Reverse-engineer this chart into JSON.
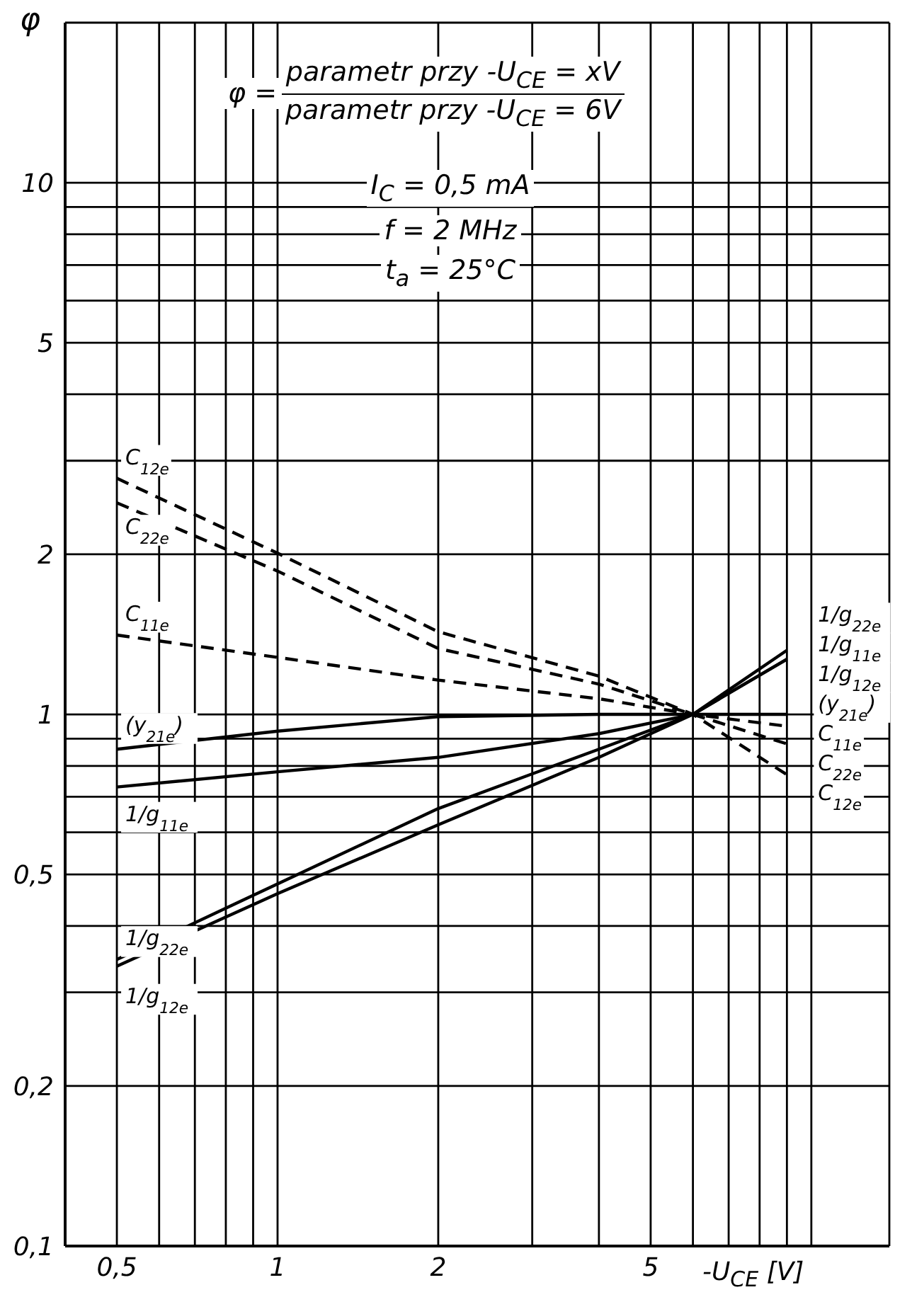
{
  "chart_data": {
    "type": "line",
    "xlabel": "-U$_{CE}$ [V]",
    "ylabel": "φ",
    "annotations": [
      "φ =",
      "parametr przy -U$_{CE}$ = xV",
      "parametr przy -U$_{CE}$ = 6V",
      "I$_{C}$ = 0,5 mA",
      "f = 2 MHz",
      "t$_{a}$ = 25°C"
    ],
    "x": [
      0.5,
      1,
      2,
      4,
      6,
      9
    ],
    "series": [
      {
        "name": "C$_{12e}$",
        "color": "#000000",
        "line_style": "dashed",
        "values": [
          2.78,
          2.01,
          1.43,
          1.18,
          1,
          0.77
        ]
      },
      {
        "name": "C$_{22e}$",
        "color": "#000000",
        "line_style": "dashed",
        "values": [
          2.5,
          1.86,
          1.33,
          1.14,
          1,
          0.88
        ]
      },
      {
        "name": "C$_{11e}$",
        "color": "#000000",
        "line_style": "dashed",
        "values": [
          1.41,
          1.28,
          1.16,
          1.07,
          1,
          0.95
        ]
      },
      {
        "name": "(y$_{21e}$)",
        "color": "#000000",
        "line_style": "solid",
        "values": [
          0.86,
          0.93,
          0.99,
          1,
          1,
          1
        ]
      },
      {
        "name": "1/g$_{11e}$",
        "color": "#000000",
        "line_style": "solid",
        "values": [
          0.73,
          0.78,
          0.83,
          0.92,
          1,
          1.27
        ]
      },
      {
        "name": "1/g$_{22e}$",
        "color": "#000000",
        "line_style": "solid",
        "values": [
          0.346,
          0.48,
          0.665,
          0.86,
          1,
          1.32
        ]
      },
      {
        "name": "1/g$_{12e}$",
        "color": "#000000",
        "line_style": "solid",
        "values": [
          0.336,
          0.46,
          0.62,
          0.83,
          1,
          1.27
        ]
      }
    ],
    "xlim": [
      0.4,
      14
    ],
    "xticks": [
      {
        "value": 0.4,
        "label": null
      },
      {
        "value": 0.5,
        "label": "0,5"
      },
      {
        "value": 0.6,
        "label": null
      },
      {
        "value": 0.7,
        "label": null
      },
      {
        "value": 0.8,
        "label": null
      },
      {
        "value": 0.9,
        "label": null
      },
      1,
      2,
      {
        "value": 3,
        "label": null
      },
      {
        "value": 4,
        "label": null
      },
      5,
      {
        "value": 6,
        "label": null
      },
      {
        "value": 7,
        "label": null
      },
      {
        "value": 8,
        "label": null
      },
      {
        "value": 9,
        "label": null
      },
      {
        "value": 10,
        "label": null
      },
      {
        "value": 14,
        "label": null
      }
    ],
    "ylim": [
      0.1,
      20
    ],
    "yticks": [
      {
        "value": 0.1,
        "label": "0,1"
      },
      {
        "value": 0.2,
        "label": "0,2"
      },
      {
        "value": 0.3,
        "label": null
      },
      {
        "value": 0.4,
        "label": null
      },
      {
        "value": 0.5,
        "label": "0,5"
      },
      {
        "value": 0.6,
        "label": null
      },
      {
        "value": 0.7,
        "label": null
      },
      {
        "value": 0.8,
        "label": null
      },
      {
        "value": 0.9,
        "label": null
      },
      1,
      2,
      {
        "value": 3,
        "label": null
      },
      {
        "value": 4,
        "label": null
      },
      5,
      {
        "value": 6,
        "label": null
      },
      {
        "value": 7,
        "label": null
      },
      {
        "value": 8,
        "label": null
      },
      {
        "value": 9,
        "label": null
      },
      10,
      {
        "value": 20,
        "label": null
      }
    ],
    "log": "xy",
    "grid": true,
    "marker": "none"
  }
}
